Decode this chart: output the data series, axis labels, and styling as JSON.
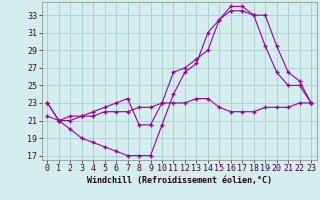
{
  "line1_x": [
    0,
    1,
    2,
    3,
    4,
    5,
    6,
    7,
    8,
    9,
    10,
    11,
    12,
    13,
    14,
    15,
    16,
    17,
    18,
    19,
    20,
    21,
    22,
    23
  ],
  "line1_y": [
    23,
    21,
    20,
    19,
    18.5,
    18,
    17.5,
    17,
    17,
    17,
    20.5,
    24,
    26.5,
    27.5,
    31,
    32.5,
    34,
    34,
    33,
    29.5,
    26.5,
    25,
    25,
    23
  ],
  "line2_x": [
    0,
    1,
    2,
    3,
    4,
    5,
    6,
    7,
    8,
    9,
    10,
    11,
    12,
    13,
    14,
    15,
    16,
    17,
    18,
    19,
    20,
    21,
    22,
    23
  ],
  "line2_y": [
    21.5,
    21,
    21,
    21.5,
    21.5,
    22,
    22,
    22,
    22.5,
    22.5,
    23,
    23,
    23,
    23.5,
    23.5,
    22.5,
    22,
    22,
    22,
    22.5,
    22.5,
    22.5,
    23,
    23
  ],
  "line3_x": [
    0,
    1,
    2,
    3,
    4,
    5,
    6,
    7,
    8,
    9,
    10,
    11,
    12,
    13,
    14,
    15,
    16,
    17,
    18,
    19,
    20,
    21,
    22,
    23
  ],
  "line3_y": [
    23,
    21,
    21.5,
    21.5,
    22,
    22.5,
    23,
    23.5,
    20.5,
    20.5,
    23,
    26.5,
    27,
    28,
    29,
    32.5,
    33.5,
    33.5,
    33,
    33,
    29.5,
    26.5,
    25.5,
    23
  ],
  "line_color": "#990099",
  "bg_color": "#d4eeee",
  "grid_color": "#aacccc",
  "xlabel": "Windchill (Refroidissement éolien,°C)",
  "xlim": [
    -0.5,
    23.5
  ],
  "ylim": [
    16.5,
    34.5
  ],
  "xticks": [
    0,
    1,
    2,
    3,
    4,
    5,
    6,
    7,
    8,
    9,
    10,
    11,
    12,
    13,
    14,
    15,
    16,
    17,
    18,
    19,
    20,
    21,
    22,
    23
  ],
  "yticks": [
    17,
    19,
    21,
    23,
    25,
    27,
    29,
    31,
    33
  ],
  "xlabel_fontsize": 6,
  "tick_fontsize": 6
}
